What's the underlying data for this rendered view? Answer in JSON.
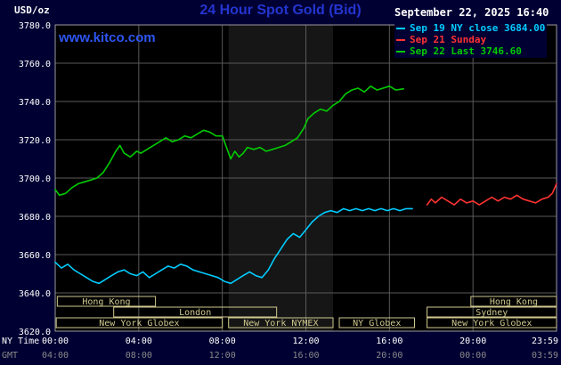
{
  "header": {
    "unit": "USD/oz",
    "title": "24 Hour Spot Gold (Bid)",
    "timestamp": "September 22, 2025 16:40",
    "watermark": "www.kitco.com"
  },
  "colors": {
    "background": "#000033",
    "title": "#2435cf",
    "watermark": "#2e55f2"
  },
  "chart_data": {
    "type": "line",
    "title": "24 Hour Spot Gold (Bid)",
    "ylabel": "USD/oz",
    "ylim": [
      3620,
      3780
    ],
    "xlim_hours": [
      0,
      24
    ],
    "grid": true,
    "legend_position": "top-right",
    "x_axis_label": "NY Time",
    "gmt_label": "GMT",
    "colors": {
      "plot_bg": "#000000",
      "band": "#161616",
      "grid": "#5a5a5a",
      "border": "#9a9a9a",
      "session": "#cfc98f",
      "axis_text": "#ffffff",
      "gmt_text": "#8a8a8a"
    },
    "nymex_band": [
      8.3,
      13.3
    ],
    "y_ticks": [
      {
        "v": 3780,
        "label": "3780.0"
      },
      {
        "v": 3760,
        "label": "3760.0"
      },
      {
        "v": 3740,
        "label": "3740.0"
      },
      {
        "v": 3720,
        "label": "3720.0"
      },
      {
        "v": 3700,
        "label": "3700.0"
      },
      {
        "v": 3680,
        "label": "3680.0"
      },
      {
        "v": 3660,
        "label": "3660.0"
      },
      {
        "v": 3640,
        "label": "3640.0"
      },
      {
        "v": 3620,
        "label": "3620.0"
      }
    ],
    "x_ticks": [
      {
        "hour": 0,
        "ny": "00:00",
        "gmt": "04:00"
      },
      {
        "hour": 4,
        "ny": "04:00",
        "gmt": "08:00"
      },
      {
        "hour": 8,
        "ny": "08:00",
        "gmt": "12:00"
      },
      {
        "hour": 12,
        "ny": "12:00",
        "gmt": "16:00"
      },
      {
        "hour": 16,
        "ny": "16:00",
        "gmt": "20:00"
      },
      {
        "hour": 20,
        "ny": "20:00",
        "gmt": "00:00"
      },
      {
        "hour": 24,
        "ny": "23:59",
        "gmt": "03:59"
      }
    ],
    "sessions": [
      {
        "label": "Hong Kong",
        "row": 0,
        "start": 0.1,
        "end": 4.8
      },
      {
        "label": "Hong Kong",
        "row": 0,
        "start": 19.9,
        "end": 24
      },
      {
        "label": "London",
        "row": 1,
        "start": 2.8,
        "end": 10.6
      },
      {
        "label": "Sydney",
        "row": 1,
        "start": 17.8,
        "end": 24
      },
      {
        "label": "New York Globex",
        "row": 2,
        "start": 0.05,
        "end": 8.0
      },
      {
        "label": "New York NYMEX",
        "row": 2,
        "start": 8.3,
        "end": 13.3
      },
      {
        "label": "NY Globex",
        "row": 2,
        "start": 13.6,
        "end": 17.2
      },
      {
        "label": "New York Globex",
        "row": 2,
        "start": 17.8,
        "end": 24
      }
    ],
    "series": [
      {
        "name": "Sep 19 NY close",
        "legend": "Sep 19 NY close 3684.00",
        "close": 3684.0,
        "color": "#00ccff",
        "points": [
          [
            0,
            3656
          ],
          [
            0.3,
            3653
          ],
          [
            0.6,
            3655
          ],
          [
            0.9,
            3652
          ],
          [
            1.2,
            3650
          ],
          [
            1.5,
            3648
          ],
          [
            1.8,
            3646
          ],
          [
            2.1,
            3645
          ],
          [
            2.4,
            3647
          ],
          [
            2.7,
            3649
          ],
          [
            3.0,
            3651
          ],
          [
            3.3,
            3652
          ],
          [
            3.6,
            3650
          ],
          [
            3.9,
            3649
          ],
          [
            4.2,
            3651
          ],
          [
            4.5,
            3648
          ],
          [
            4.8,
            3650
          ],
          [
            5.1,
            3652
          ],
          [
            5.4,
            3654
          ],
          [
            5.7,
            3653
          ],
          [
            6.0,
            3655
          ],
          [
            6.3,
            3654
          ],
          [
            6.6,
            3652
          ],
          [
            6.9,
            3651
          ],
          [
            7.2,
            3650
          ],
          [
            7.5,
            3649
          ],
          [
            7.8,
            3648
          ],
          [
            8.1,
            3646
          ],
          [
            8.4,
            3645
          ],
          [
            8.7,
            3647
          ],
          [
            9.0,
            3649
          ],
          [
            9.3,
            3651
          ],
          [
            9.6,
            3649
          ],
          [
            9.9,
            3648
          ],
          [
            10.2,
            3652
          ],
          [
            10.5,
            3658
          ],
          [
            10.8,
            3663
          ],
          [
            11.1,
            3668
          ],
          [
            11.4,
            3671
          ],
          [
            11.7,
            3669
          ],
          [
            12.0,
            3673
          ],
          [
            12.3,
            3677
          ],
          [
            12.6,
            3680
          ],
          [
            12.9,
            3682
          ],
          [
            13.2,
            3683
          ],
          [
            13.5,
            3682
          ],
          [
            13.8,
            3684
          ],
          [
            14.1,
            3683
          ],
          [
            14.4,
            3684
          ],
          [
            14.7,
            3683
          ],
          [
            15.0,
            3684
          ],
          [
            15.3,
            3683
          ],
          [
            15.6,
            3684
          ],
          [
            15.9,
            3683
          ],
          [
            16.2,
            3684
          ],
          [
            16.5,
            3683
          ],
          [
            16.8,
            3684
          ],
          [
            17.1,
            3684
          ]
        ]
      },
      {
        "name": "Sep 21 Sunday",
        "legend": "Sep 21 Sunday",
        "color": "#ff3333",
        "points": [
          [
            17.8,
            3686
          ],
          [
            18.0,
            3689
          ],
          [
            18.2,
            3687
          ],
          [
            18.5,
            3690
          ],
          [
            18.8,
            3688
          ],
          [
            19.1,
            3686
          ],
          [
            19.4,
            3689
          ],
          [
            19.7,
            3687
          ],
          [
            20.0,
            3688
          ],
          [
            20.3,
            3686
          ],
          [
            20.6,
            3688
          ],
          [
            20.9,
            3690
          ],
          [
            21.2,
            3688
          ],
          [
            21.5,
            3690
          ],
          [
            21.8,
            3689
          ],
          [
            22.1,
            3691
          ],
          [
            22.4,
            3689
          ],
          [
            22.7,
            3688
          ],
          [
            23.0,
            3687
          ],
          [
            23.3,
            3689
          ],
          [
            23.6,
            3690
          ],
          [
            23.8,
            3692
          ],
          [
            24.0,
            3697
          ]
        ]
      },
      {
        "name": "Sep 22 Last",
        "legend": "Sep 22 Last 3746.60",
        "last": 3746.6,
        "color": "#00cc00",
        "points": [
          [
            0,
            3694
          ],
          [
            0.2,
            3691
          ],
          [
            0.5,
            3692
          ],
          [
            0.8,
            3695
          ],
          [
            1.1,
            3697
          ],
          [
            1.4,
            3698
          ],
          [
            1.7,
            3699
          ],
          [
            2.0,
            3700
          ],
          [
            2.3,
            3703
          ],
          [
            2.6,
            3708
          ],
          [
            2.9,
            3714
          ],
          [
            3.1,
            3717
          ],
          [
            3.3,
            3713
          ],
          [
            3.6,
            3711
          ],
          [
            3.9,
            3714
          ],
          [
            4.1,
            3713
          ],
          [
            4.4,
            3715
          ],
          [
            4.7,
            3717
          ],
          [
            5.0,
            3719
          ],
          [
            5.3,
            3721
          ],
          [
            5.6,
            3719
          ],
          [
            5.9,
            3720
          ],
          [
            6.2,
            3722
          ],
          [
            6.5,
            3721
          ],
          [
            6.8,
            3723
          ],
          [
            7.1,
            3725
          ],
          [
            7.4,
            3724
          ],
          [
            7.7,
            3722
          ],
          [
            8.0,
            3722
          ],
          [
            8.2,
            3716
          ],
          [
            8.4,
            3710
          ],
          [
            8.6,
            3714
          ],
          [
            8.8,
            3711
          ],
          [
            9.0,
            3713
          ],
          [
            9.2,
            3716
          ],
          [
            9.5,
            3715
          ],
          [
            9.8,
            3716
          ],
          [
            10.1,
            3714
          ],
          [
            10.4,
            3715
          ],
          [
            10.7,
            3716
          ],
          [
            11.0,
            3717
          ],
          [
            11.3,
            3719
          ],
          [
            11.6,
            3721
          ],
          [
            11.9,
            3726
          ],
          [
            12.1,
            3731
          ],
          [
            12.4,
            3734
          ],
          [
            12.7,
            3736
          ],
          [
            13.0,
            3735
          ],
          [
            13.3,
            3738
          ],
          [
            13.6,
            3740
          ],
          [
            13.9,
            3744
          ],
          [
            14.2,
            3746
          ],
          [
            14.5,
            3747
          ],
          [
            14.8,
            3745
          ],
          [
            15.1,
            3748
          ],
          [
            15.4,
            3746
          ],
          [
            15.7,
            3747
          ],
          [
            16.0,
            3748
          ],
          [
            16.3,
            3746
          ],
          [
            16.67,
            3746.6
          ]
        ]
      }
    ]
  }
}
